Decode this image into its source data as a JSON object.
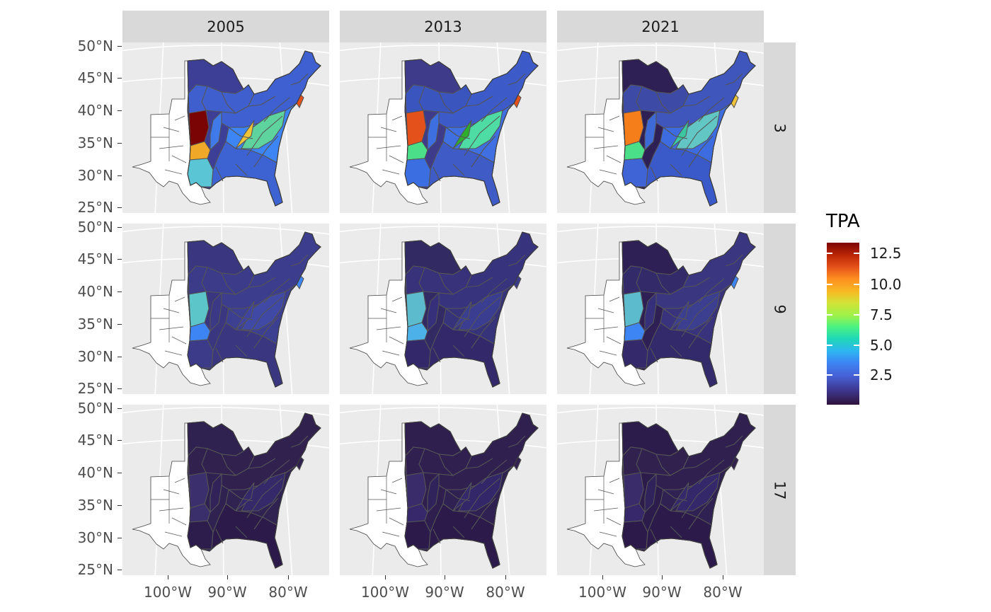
{
  "facets": {
    "columns": [
      "2005",
      "2013",
      "2021"
    ],
    "rows": [
      "3",
      "9",
      "17"
    ]
  },
  "axes": {
    "y_ticks": [
      "50°N",
      "45°N",
      "40°N",
      "35°N",
      "30°N",
      "25°N"
    ],
    "x_ticks": [
      "100°W",
      "90°W",
      "80°W"
    ]
  },
  "legend": {
    "title": "TPA",
    "labels": [
      "12.5",
      "10.0",
      "7.5",
      "5.0",
      "2.5"
    ],
    "colormap": "turbo",
    "colors": [
      "#30123b",
      "#4662d7",
      "#2db5f2",
      "#4bf283",
      "#d3e236",
      "#fd8d20",
      "#bf2807",
      "#7a0403"
    ]
  },
  "map_layers": {
    "background_fill": "#ebebeb",
    "graticule_color": "#ffffff",
    "outline_color": "#555555",
    "western_states_fill": "#ffffff"
  }
}
